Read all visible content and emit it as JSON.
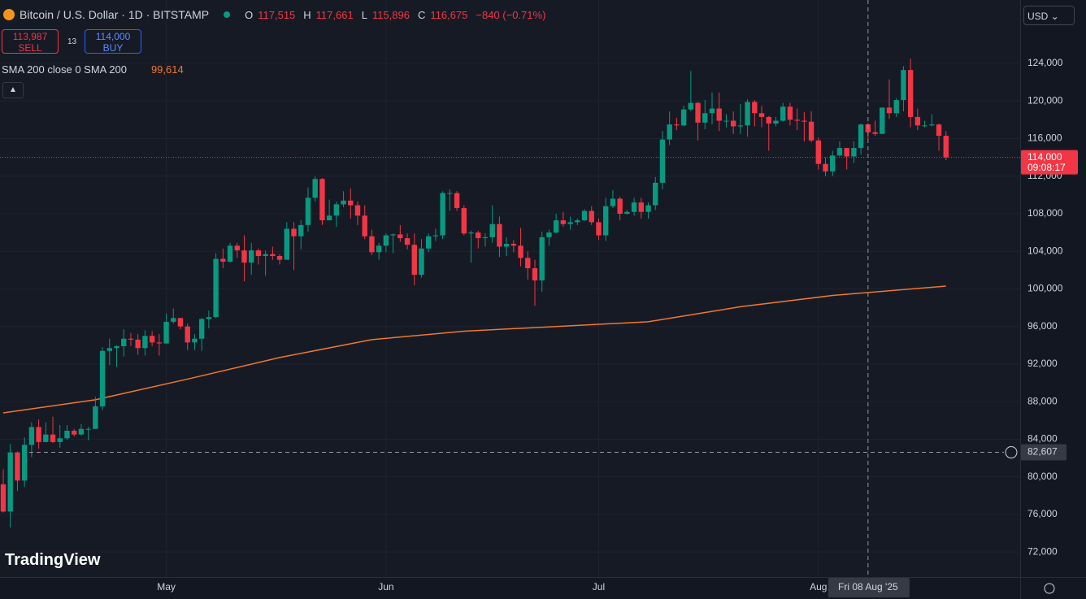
{
  "chart_data": {
    "type": "candlestick",
    "up_color": "#089981",
    "down_color": "#f23645",
    "grid": true,
    "ylim": [
      69330,
      130750
    ],
    "yticks": [
      {
        "value": 72000,
        "label": "72,000"
      },
      {
        "value": 76000,
        "label": "76,000"
      },
      {
        "value": 80000,
        "label": "80,000"
      },
      {
        "value": 84000,
        "label": "84,000"
      },
      {
        "value": 88000,
        "label": "88,000"
      },
      {
        "value": 92000,
        "label": "92,000"
      },
      {
        "value": 96000,
        "label": "96,000"
      },
      {
        "value": 100000,
        "label": "100,000"
      },
      {
        "value": 104000,
        "label": "104,000"
      },
      {
        "value": 108000,
        "label": "108,000"
      },
      {
        "value": 112000,
        "label": "112,000"
      },
      {
        "value": 116000,
        "label": "116,000"
      },
      {
        "value": 120000,
        "label": "120,000"
      },
      {
        "value": 124000,
        "label": "124,000"
      }
    ],
    "xticks": [
      {
        "value": 23,
        "label": "May"
      },
      {
        "value": 54,
        "label": "Jun"
      },
      {
        "value": 84,
        "label": "Jul"
      },
      {
        "value": 115,
        "label": "Aug"
      }
    ],
    "candles": [
      [
        79200,
        80800,
        76200,
        76300
      ],
      [
        76300,
        83500,
        74600,
        82600
      ],
      [
        82600,
        82700,
        78500,
        79600
      ],
      [
        79600,
        84200,
        78900,
        83400
      ],
      [
        83400,
        85800,
        82100,
        85300
      ],
      [
        85300,
        86100,
        83000,
        83700
      ],
      [
        83700,
        85800,
        83700,
        84500
      ],
      [
        84500,
        86400,
        83600,
        83700
      ],
      [
        83700,
        85500,
        83100,
        84100
      ],
      [
        84100,
        85500,
        83900,
        84900
      ],
      [
        84900,
        85100,
        84300,
        84500
      ],
      [
        84500,
        85600,
        84400,
        85100
      ],
      [
        85100,
        85300,
        83900,
        85100
      ],
      [
        85100,
        88500,
        85100,
        87500
      ],
      [
        87500,
        93800,
        87100,
        93400
      ],
      [
        93400,
        94700,
        91900,
        93700
      ],
      [
        93700,
        94000,
        91700,
        93900
      ],
      [
        93900,
        95700,
        92800,
        94700
      ],
      [
        94700,
        95300,
        93900,
        94600
      ],
      [
        94600,
        95200,
        93000,
        93700
      ],
      [
        93700,
        95600,
        92900,
        95000
      ],
      [
        95000,
        95500,
        93900,
        94300
      ],
      [
        94300,
        95200,
        92900,
        94200
      ],
      [
        94200,
        97400,
        94100,
        96500
      ],
      [
        96500,
        97900,
        96300,
        96900
      ],
      [
        96900,
        96900,
        95700,
        96000
      ],
      [
        96000,
        96300,
        93500,
        94300
      ],
      [
        94300,
        95200,
        93500,
        94700
      ],
      [
        94700,
        96900,
        93400,
        96800
      ],
      [
        96800,
        97700,
        95800,
        97000
      ],
      [
        97000,
        103800,
        96900,
        103200
      ],
      [
        103200,
        104300,
        102200,
        102900
      ],
      [
        102900,
        104900,
        102800,
        104600
      ],
      [
        104600,
        104900,
        103300,
        104100
      ],
      [
        104100,
        105700,
        100800,
        102800
      ],
      [
        102800,
        104900,
        101500,
        104100
      ],
      [
        104100,
        104300,
        102600,
        103500
      ],
      [
        103500,
        104100,
        101400,
        103700
      ],
      [
        103700,
        104500,
        103100,
        103500
      ],
      [
        103500,
        103700,
        102600,
        103100
      ],
      [
        103100,
        107100,
        103100,
        106400
      ],
      [
        106400,
        107100,
        102000,
        105600
      ],
      [
        105600,
        107300,
        104200,
        106800
      ],
      [
        106800,
        110800,
        106100,
        109700
      ],
      [
        109700,
        112000,
        109300,
        111700
      ],
      [
        111700,
        111800,
        106800,
        107300
      ],
      [
        107300,
        109500,
        107300,
        107800
      ],
      [
        107800,
        109300,
        106600,
        109000
      ],
      [
        109000,
        110400,
        108700,
        109400
      ],
      [
        109400,
        110700,
        107500,
        108900
      ],
      [
        108900,
        109300,
        106800,
        107800
      ],
      [
        107800,
        108900,
        105300,
        105600
      ],
      [
        105600,
        106300,
        103600,
        103900
      ],
      [
        103900,
        104900,
        103100,
        104600
      ],
      [
        104600,
        105900,
        103900,
        105700
      ],
      [
        105700,
        105900,
        103800,
        105800
      ],
      [
        105800,
        106800,
        105000,
        105400
      ],
      [
        105400,
        105900,
        104200,
        104700
      ],
      [
        104700,
        105900,
        100400,
        101500
      ],
      [
        101500,
        105300,
        101200,
        104300
      ],
      [
        104300,
        105900,
        103900,
        105600
      ],
      [
        105600,
        106400,
        105100,
        105700
      ],
      [
        105700,
        110400,
        105300,
        110200
      ],
      [
        110200,
        110600,
        108300,
        110200
      ],
      [
        110200,
        110400,
        108300,
        108600
      ],
      [
        108600,
        108900,
        105700,
        105900
      ],
      [
        105900,
        106200,
        102800,
        106000
      ],
      [
        106000,
        106200,
        104300,
        105400
      ],
      [
        105400,
        105900,
        104500,
        105500
      ],
      [
        105500,
        108900,
        104900,
        106900
      ],
      [
        106900,
        107700,
        103400,
        104500
      ],
      [
        104500,
        105500,
        103500,
        104800
      ],
      [
        104800,
        105200,
        103900,
        104600
      ],
      [
        104600,
        106500,
        102400,
        103300
      ],
      [
        103300,
        104000,
        101000,
        102200
      ],
      [
        102200,
        103100,
        98200,
        100900
      ],
      [
        100900,
        106100,
        99700,
        105500
      ],
      [
        105500,
        106300,
        104600,
        106000
      ],
      [
        106000,
        108000,
        105900,
        107300
      ],
      [
        107300,
        108200,
        106600,
        106900
      ],
      [
        106900,
        107700,
        106300,
        107100
      ],
      [
        107100,
        107500,
        106800,
        107300
      ],
      [
        107300,
        108500,
        107200,
        108300
      ],
      [
        108300,
        108800,
        106800,
        107100
      ],
      [
        107100,
        107500,
        105200,
        105700
      ],
      [
        105700,
        109700,
        105100,
        108800
      ],
      [
        108800,
        110500,
        108600,
        109600
      ],
      [
        109600,
        109800,
        107300,
        108000
      ],
      [
        108000,
        108400,
        107900,
        108200
      ],
      [
        108200,
        109700,
        107800,
        109200
      ],
      [
        109200,
        109700,
        107500,
        108200
      ],
      [
        108200,
        109200,
        107500,
        108900
      ],
      [
        108900,
        111900,
        108400,
        111300
      ],
      [
        111300,
        116800,
        110600,
        115900
      ],
      [
        115900,
        118900,
        115300,
        117500
      ],
      [
        117500,
        118200,
        116900,
        117400
      ],
      [
        117400,
        119500,
        117300,
        119100
      ],
      [
        119100,
        123200,
        118900,
        119800
      ],
      [
        119800,
        119900,
        115800,
        117700
      ],
      [
        117700,
        120100,
        117000,
        118700
      ],
      [
        118700,
        120900,
        117500,
        119200
      ],
      [
        119200,
        120900,
        116800,
        117900
      ],
      [
        117900,
        118600,
        117200,
        117900
      ],
      [
        117900,
        118900,
        116500,
        117300
      ],
      [
        117300,
        119700,
        116500,
        117400
      ],
      [
        117400,
        120200,
        116200,
        119900
      ],
      [
        119900,
        120100,
        117300,
        118700
      ],
      [
        118700,
        119500,
        117200,
        118300
      ],
      [
        118300,
        118400,
        114700,
        117600
      ],
      [
        117600,
        118300,
        117300,
        117900
      ],
      [
        117900,
        119800,
        117800,
        119400
      ],
      [
        119400,
        119800,
        117400,
        118000
      ],
      [
        118000,
        119200,
        116900,
        117900
      ],
      [
        117900,
        118800,
        115700,
        117800
      ],
      [
        117800,
        118900,
        115600,
        115800
      ],
      [
        115800,
        116100,
        112700,
        113300
      ],
      [
        113300,
        114000,
        112000,
        112500
      ],
      [
        112500,
        114700,
        112000,
        114200
      ],
      [
        114200,
        115700,
        114100,
        115000
      ],
      [
        115000,
        115000,
        112700,
        114100
      ],
      [
        114100,
        115700,
        113400,
        115000
      ],
      [
        115000,
        117600,
        114300,
        117500
      ],
      [
        117515,
        117661,
        115896,
        116675
      ],
      [
        116675,
        117900,
        116300,
        116500
      ],
      [
        116500,
        119300,
        116500,
        119300
      ],
      [
        119300,
        122300,
        118100,
        118700
      ],
      [
        118700,
        120300,
        118300,
        120100
      ],
      [
        120100,
        123700,
        118900,
        123300
      ],
      [
        123300,
        124500,
        117200,
        118300
      ],
      [
        118300,
        119200,
        116900,
        117400
      ],
      [
        117400,
        117900,
        117200,
        117400
      ],
      [
        117400,
        118600,
        117300,
        117500
      ],
      [
        117500,
        117600,
        114700,
        116300
      ],
      [
        116300,
        116800,
        113700,
        114000
      ]
    ],
    "sma": {
      "name": "SMA 200 close 0 SMA 200",
      "color": "#f0782a",
      "x": [
        0,
        13,
        26,
        39,
        52,
        65,
        78,
        91,
        104,
        117,
        133
      ],
      "values": [
        86800,
        88200,
        90400,
        92700,
        94600,
        95500,
        96000,
        96500,
        98100,
        99300,
        100300
      ]
    },
    "price_line": {
      "value": 114000,
      "label": "114,000",
      "countdown": "09:08:17",
      "color": "#f23645"
    },
    "crosshair": {
      "x": 122,
      "x_label": "Fri 08 Aug '25",
      "y": 82607,
      "y_label": "82,607"
    }
  },
  "ui": {
    "symbol": "Bitcoin / U.S. Dollar · 1D · BITSTAMP",
    "ohlc": [
      {
        "key": "O",
        "value": "117,515"
      },
      {
        "key": "H",
        "value": "117,661"
      },
      {
        "key": "L",
        "value": "115,896"
      },
      {
        "key": "C",
        "value": "116,675"
      }
    ],
    "change": "−840 (−0.71%)",
    "sell": {
      "price": "113,987",
      "label": "SELL"
    },
    "spread": "13",
    "buy": {
      "price": "114,000",
      "label": "BUY"
    },
    "sma_value": "99,614",
    "currency": "USD",
    "brand": "TradingView"
  }
}
